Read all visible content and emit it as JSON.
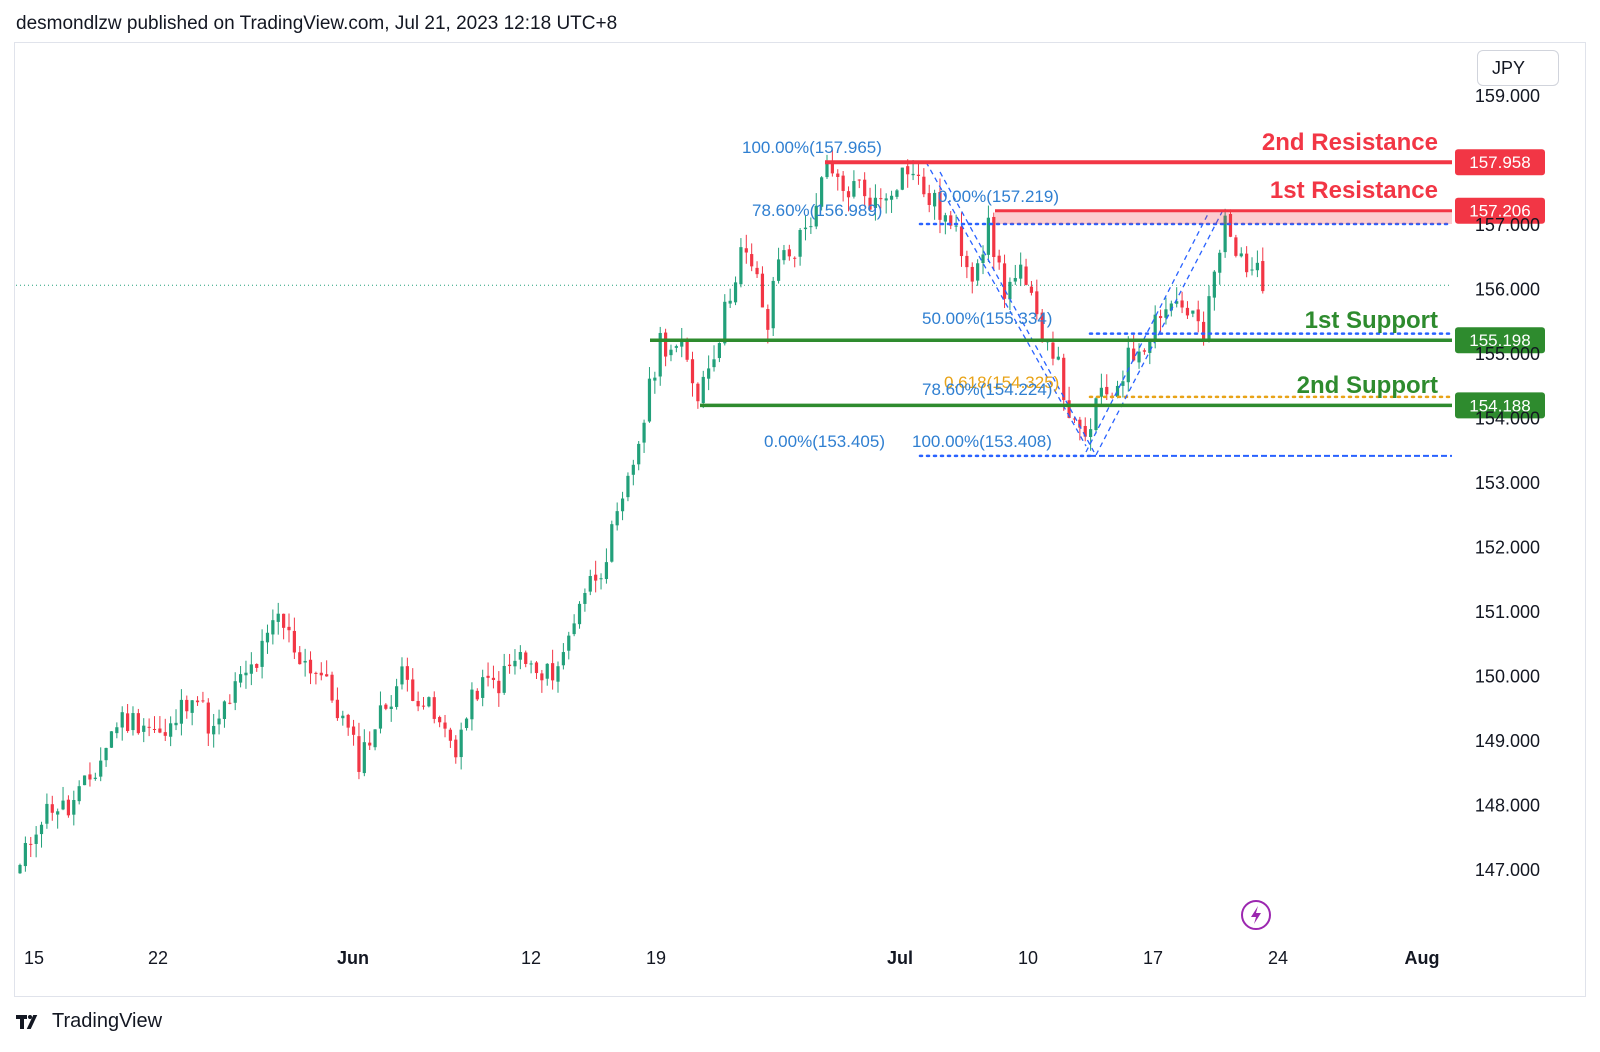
{
  "header": {
    "publisher_line": "desmondlzw published on TradingView.com, Jul 21, 2023 12:18 UTC+8",
    "brand": "TradingView",
    "currency": "JPY"
  },
  "colors": {
    "up": "#22a07a",
    "down": "#f23645",
    "resistance": "#f23645",
    "support": "#2e8b2e",
    "fib": "#2962ff",
    "fib_text": "#2f7fd1",
    "fib_gold": "#e8a317",
    "lightning": "#9c27b0",
    "axis_text": "#131722"
  },
  "chart_data": {
    "type": "candlestick",
    "symbol_currency": "JPY",
    "x_tick_labels": [
      "15",
      "22",
      "Jun",
      "12",
      "19",
      "Jul",
      "10",
      "17",
      "24",
      "Aug"
    ],
    "y_tick_labels": [
      "159.000",
      "157.000",
      "156.000",
      "155.000",
      "154.000",
      "153.000",
      "152.000",
      "151.000",
      "150.000",
      "149.000",
      "148.000",
      "147.000"
    ],
    "ylim": [
      146.0,
      159.3
    ],
    "last_price": 156.05,
    "levels": [
      {
        "name": "2nd Resistance",
        "value": 157.958,
        "label": "157.958",
        "kind": "resistance"
      },
      {
        "name": "1st Resistance",
        "value": 157.206,
        "label": "157.206",
        "kind": "resistance"
      },
      {
        "name": "1st Support",
        "value": 155.198,
        "label": "155.198",
        "kind": "support"
      },
      {
        "name": "2nd Support",
        "value": 154.188,
        "label": "154.188",
        "kind": "support"
      }
    ],
    "fib_labels": [
      {
        "text": "100.00%(157.965)",
        "value": 157.965
      },
      {
        "text": "0.00%(157.219)",
        "value": 157.219
      },
      {
        "text": "78.60%(156.989)",
        "value": 156.989
      },
      {
        "text": "50.00%(155.334)",
        "value": 155.334
      },
      {
        "text": "0.618(154.325)",
        "value": 154.325
      },
      {
        "text": "78.60%(154.224)",
        "value": 154.224
      },
      {
        "text": "0.00%(153.405)",
        "value": 153.405
      },
      {
        "text": "100.00%(153.408)",
        "value": 153.408
      }
    ],
    "anchors": [
      {
        "t": 0,
        "p": 147.0
      },
      {
        "t": 3,
        "p": 147.7
      },
      {
        "t": 6,
        "p": 148.0
      },
      {
        "t": 9,
        "p": 147.9
      },
      {
        "t": 14,
        "p": 148.5
      },
      {
        "t": 18,
        "p": 149.3
      },
      {
        "t": 23,
        "p": 149.3
      },
      {
        "t": 27,
        "p": 149.0
      },
      {
        "t": 32,
        "p": 149.8
      },
      {
        "t": 36,
        "p": 149.1
      },
      {
        "t": 40,
        "p": 149.8
      },
      {
        "t": 44,
        "p": 150.2
      },
      {
        "t": 48,
        "p": 150.9
      },
      {
        "t": 52,
        "p": 150.3
      },
      {
        "t": 56,
        "p": 150.0
      },
      {
        "t": 60,
        "p": 149.3
      },
      {
        "t": 63,
        "p": 148.7
      },
      {
        "t": 67,
        "p": 149.4
      },
      {
        "t": 71,
        "p": 150.0
      },
      {
        "t": 75,
        "p": 149.6
      },
      {
        "t": 78,
        "p": 149.2
      },
      {
        "t": 81,
        "p": 148.9
      },
      {
        "t": 85,
        "p": 149.8
      },
      {
        "t": 89,
        "p": 149.9
      },
      {
        "t": 93,
        "p": 150.3
      },
      {
        "t": 97,
        "p": 149.9
      },
      {
        "t": 101,
        "p": 150.3
      },
      {
        "t": 104,
        "p": 151.2
      },
      {
        "t": 108,
        "p": 151.7
      },
      {
        "t": 112,
        "p": 152.6
      },
      {
        "t": 116,
        "p": 154.0
      },
      {
        "t": 119,
        "p": 155.2
      },
      {
        "t": 123,
        "p": 155.0
      },
      {
        "t": 126,
        "p": 154.4
      },
      {
        "t": 130,
        "p": 155.3
      },
      {
        "t": 134,
        "p": 156.6
      },
      {
        "t": 137,
        "p": 156.1
      },
      {
        "t": 139,
        "p": 155.4
      },
      {
        "t": 141,
        "p": 156.5
      },
      {
        "t": 144,
        "p": 156.6
      },
      {
        "t": 147,
        "p": 157.1
      },
      {
        "t": 150,
        "p": 157.8
      },
      {
        "t": 153,
        "p": 157.5
      },
      {
        "t": 156,
        "p": 157.6
      },
      {
        "t": 159,
        "p": 157.3
      },
      {
        "t": 162,
        "p": 157.6
      },
      {
        "t": 165,
        "p": 157.9
      },
      {
        "t": 168,
        "p": 157.5
      },
      {
        "t": 171,
        "p": 157.2
      },
      {
        "t": 174,
        "p": 156.8
      },
      {
        "t": 177,
        "p": 156.3
      },
      {
        "t": 180,
        "p": 156.9
      },
      {
        "t": 183,
        "p": 156.0
      },
      {
        "t": 186,
        "p": 156.2
      },
      {
        "t": 189,
        "p": 155.5
      },
      {
        "t": 192,
        "p": 155.1
      },
      {
        "t": 194,
        "p": 154.4
      },
      {
        "t": 196,
        "p": 153.8
      },
      {
        "t": 198,
        "p": 153.6
      },
      {
        "t": 200,
        "p": 154.2
      },
      {
        "t": 203,
        "p": 154.4
      },
      {
        "t": 206,
        "p": 154.9
      },
      {
        "t": 209,
        "p": 155.2
      },
      {
        "t": 212,
        "p": 155.7
      },
      {
        "t": 215,
        "p": 155.8
      },
      {
        "t": 218,
        "p": 155.6
      },
      {
        "t": 220,
        "p": 155.2
      },
      {
        "t": 222,
        "p": 156.2
      },
      {
        "t": 224,
        "p": 157.0
      },
      {
        "t": 226,
        "p": 156.5
      },
      {
        "t": 229,
        "p": 156.4
      },
      {
        "t": 231,
        "p": 156.0
      }
    ]
  }
}
